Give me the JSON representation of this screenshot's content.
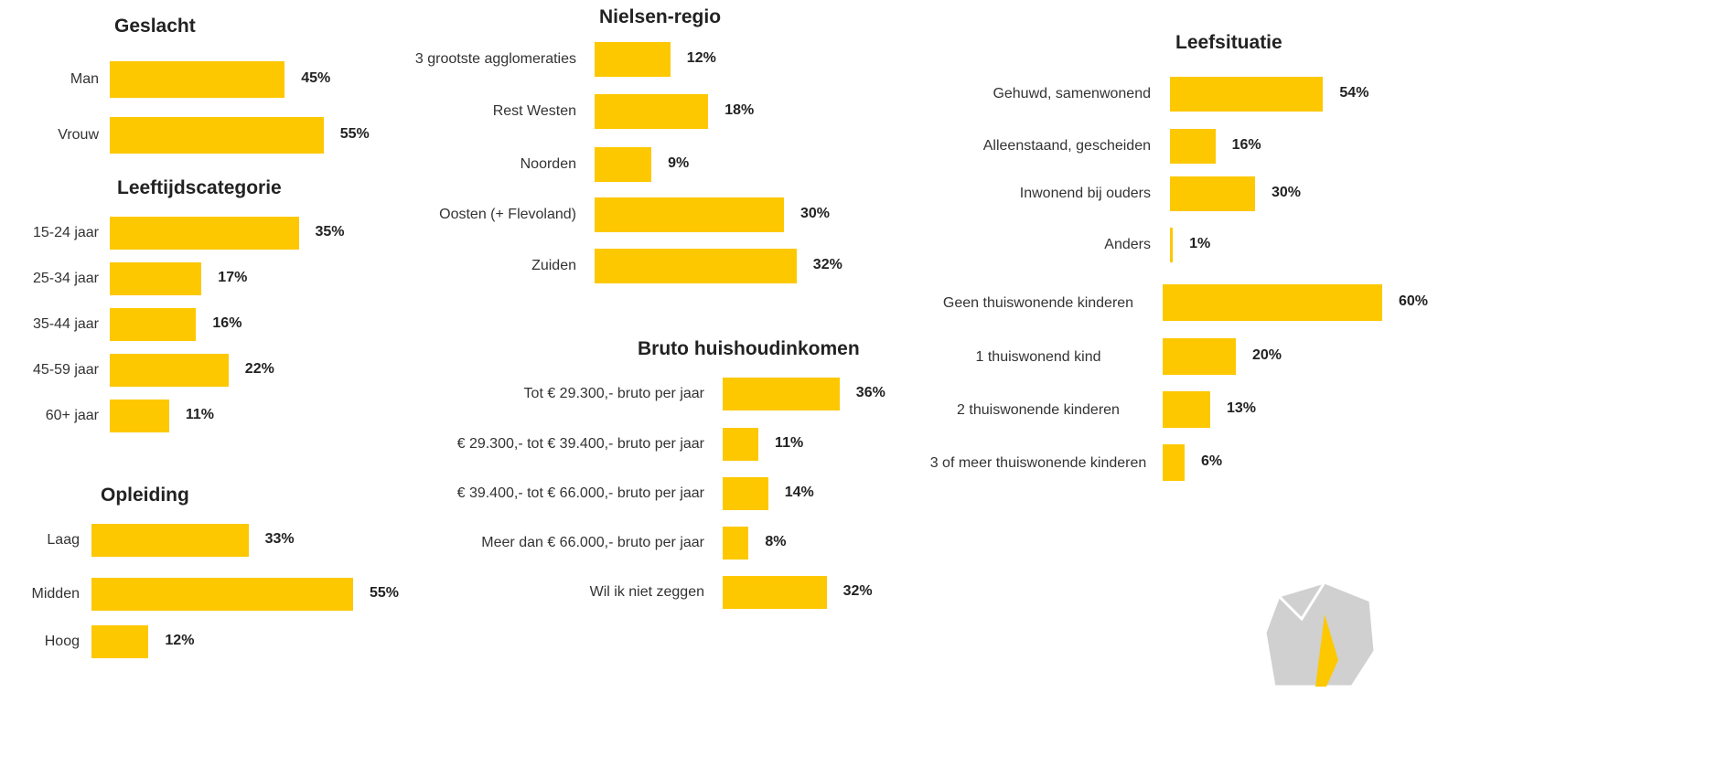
{
  "chart_data": [
    {
      "type": "bar",
      "title": "Geslacht",
      "categories": [
        "Man",
        "Vrouw"
      ],
      "values": [
        45,
        55
      ],
      "value_labels": [
        "45%",
        "55%"
      ],
      "color": "#fdc800"
    },
    {
      "type": "bar",
      "title": "Leeftijdscategorie",
      "categories": [
        "15-24 jaar",
        "25-34 jaar",
        "35-44 jaar",
        "45-59 jaar",
        "60+ jaar"
      ],
      "values": [
        35,
        17,
        16,
        22,
        11
      ],
      "value_labels": [
        "35%",
        "17%",
        "16%",
        "22%",
        "11%"
      ],
      "color": "#fdc800"
    },
    {
      "type": "bar",
      "title": "Opleiding",
      "categories": [
        "Laag",
        "Midden",
        "Hoog"
      ],
      "values": [
        33,
        55,
        12
      ],
      "value_labels": [
        "33%",
        "55%",
        "12%"
      ],
      "color": "#fdc800"
    },
    {
      "type": "bar",
      "title": "Nielsen-regio",
      "categories": [
        "3 grootste agglomeraties",
        "Rest Westen",
        "Noorden",
        "Oosten (+ Flevoland)",
        "Zuiden"
      ],
      "values": [
        12,
        18,
        9,
        30,
        32
      ],
      "value_labels": [
        "12%",
        "18%",
        "9%",
        "30%",
        "32%"
      ],
      "color": "#fdc800"
    },
    {
      "type": "bar",
      "title": "Bruto huishoudinkomen",
      "categories": [
        "Tot € 29.300,- bruto per jaar",
        "€ 29.300,- tot € 39.400,- bruto per jaar",
        "€ 39.400,- tot € 66.000,- bruto per jaar",
        "Meer dan € 66.000,- bruto per jaar",
        "Wil ik niet zeggen"
      ],
      "values": [
        36,
        11,
        14,
        8,
        32
      ],
      "value_labels": [
        "36%",
        "11%",
        "14%",
        "8%",
        "32%"
      ],
      "color": "#fdc800"
    },
    {
      "type": "bar",
      "title": "Leefsituatie",
      "categories": [
        "Gehuwd, samenwonend",
        "Alleenstaand, gescheiden",
        "Inwonend bij ouders",
        "Anders"
      ],
      "values": [
        54,
        16,
        30,
        1
      ],
      "value_labels": [
        "54%",
        "16%",
        "30%",
        "1%"
      ],
      "color": "#fdc800"
    },
    {
      "type": "bar",
      "categories": [
        "Geen thuiswonende kinderen",
        "1 thuiswonend kind",
        "2 thuiswonende kinderen",
        "3 of meer thuiswonende kinderen"
      ],
      "values": [
        60,
        20,
        13,
        6
      ],
      "value_labels": [
        "60%",
        "20%",
        "13%",
        "6%"
      ],
      "color": "#fdc800"
    }
  ]
}
